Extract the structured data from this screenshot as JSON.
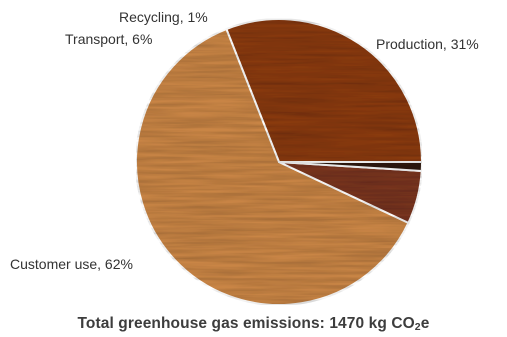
{
  "chart_data": {
    "type": "pie",
    "title_main": "Total greenhouse gas emissions: 1470 kg CO",
    "title_sub": "2",
    "title_tail": "e",
    "slices": [
      {
        "label": "Production, 31%",
        "name": "Production",
        "value": 31,
        "color": "#8a3a0e"
      },
      {
        "label": "Customer use, 62%",
        "name": "Customer use",
        "value": 62,
        "color": "#c98545"
      },
      {
        "label": "Transport, 6%",
        "name": "Transport",
        "value": 6,
        "color": "#7a3520"
      },
      {
        "label": "Recycling, 1%",
        "name": "Recycling",
        "value": 1,
        "color": "#2e1a0e"
      }
    ],
    "start_angle_deg": 0,
    "direction": "counterclockwise",
    "legend": "none",
    "texture": "wood grain"
  }
}
